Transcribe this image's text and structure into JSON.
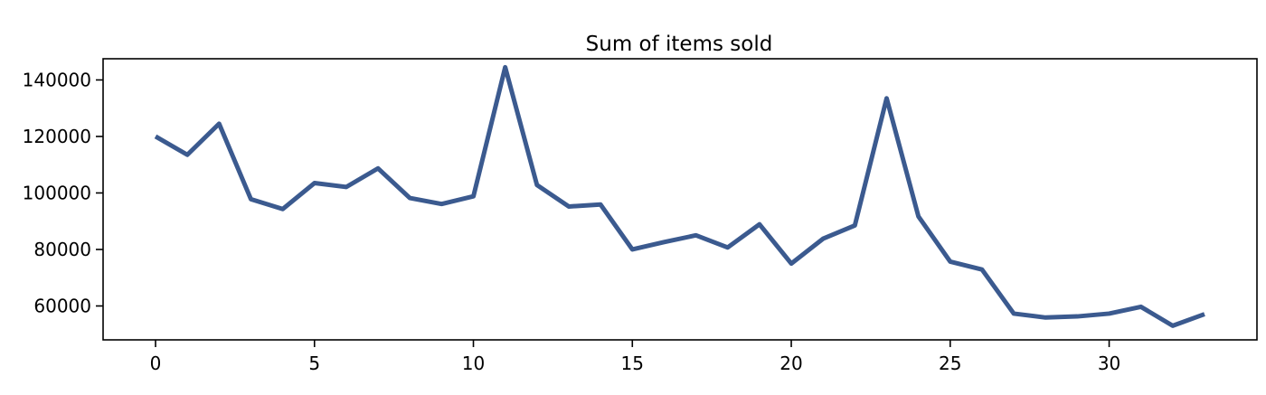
{
  "chart_data": {
    "type": "line",
    "title": "Sum of items sold",
    "xlabel": "",
    "ylabel": "",
    "xlim": [
      -1.65,
      34.65
    ],
    "ylim": [
      48000,
      147500
    ],
    "x_ticks": [
      0,
      5,
      10,
      15,
      20,
      25,
      30
    ],
    "y_ticks": [
      60000,
      80000,
      100000,
      120000,
      140000
    ],
    "grid": false,
    "legend": "none",
    "series": [
      {
        "color": "#3b5a8f",
        "x": [
          0,
          1,
          2,
          3,
          4,
          5,
          6,
          7,
          8,
          9,
          10,
          11,
          12,
          13,
          14,
          15,
          16,
          17,
          18,
          19,
          20,
          21,
          22,
          23,
          24,
          25,
          26,
          27,
          28,
          29,
          30,
          31,
          32,
          33
        ],
        "values": [
          120000,
          113500,
          124500,
          97800,
          94300,
          103500,
          102100,
          108700,
          98200,
          96100,
          98800,
          144500,
          102800,
          95200,
          95900,
          80000,
          82600,
          85000,
          80700,
          88900,
          75000,
          83800,
          88500,
          133500,
          91700,
          75700,
          72900,
          57300,
          55900,
          56300,
          57300,
          59700,
          53000,
          57100
        ]
      }
    ]
  }
}
